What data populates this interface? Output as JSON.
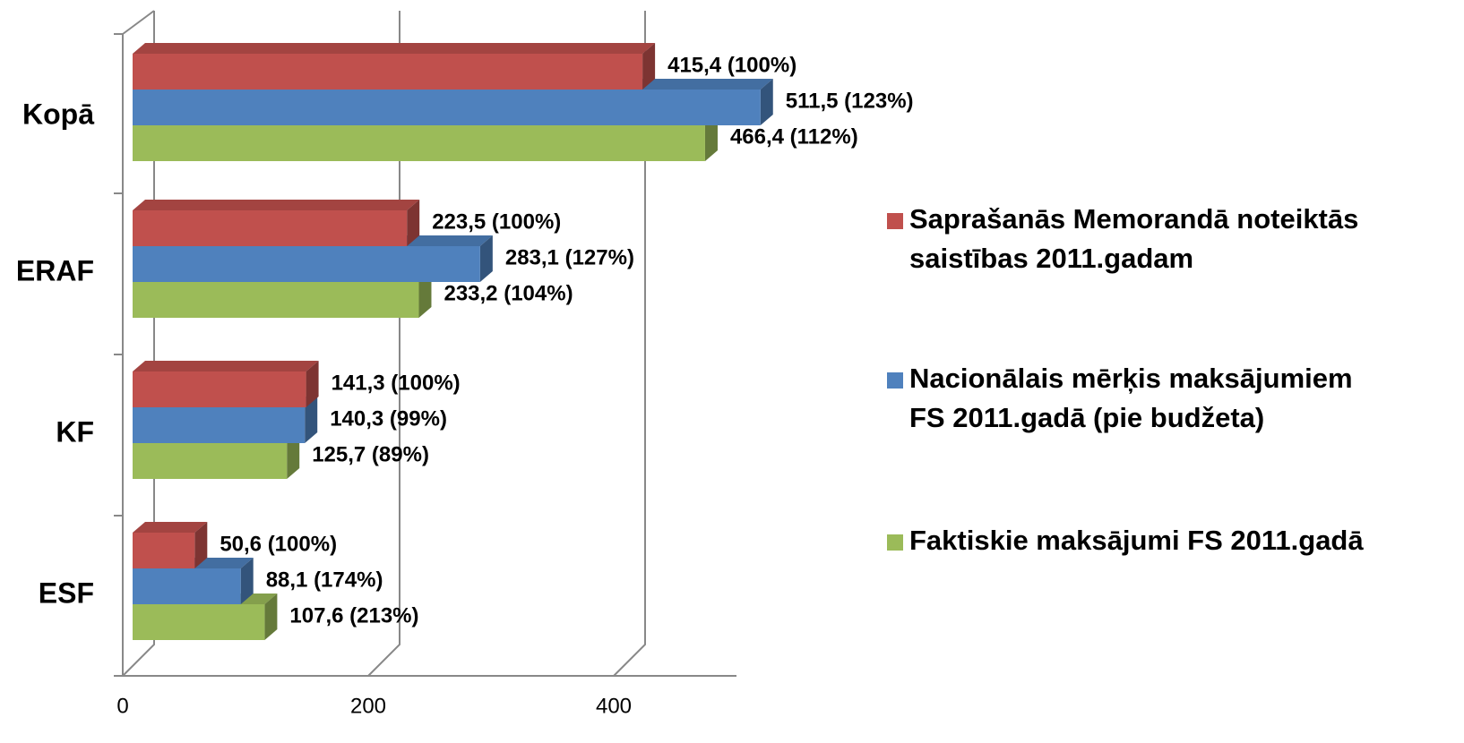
{
  "chart_data": {
    "type": "bar3d_horizontal",
    "categories": [
      "Kopā",
      "ERAF",
      "KF",
      "ESF"
    ],
    "series": [
      {
        "name": "Saprašanās Memorandā noteiktās saistības 2011.gadam",
        "color": "#c0504d",
        "values": [
          415.4,
          223.5,
          141.3,
          50.6
        ],
        "value_labels": [
          "415,4 (100%)",
          "223,5 (100%)",
          "141,3 (100%)",
          "50,6 (100%)"
        ]
      },
      {
        "name": "Nacionālais mērķis maksājumiem FS 2011.gadā (pie budžeta)",
        "color": "#4f81bd",
        "values": [
          511.5,
          283.1,
          140.3,
          88.1
        ],
        "value_labels": [
          "511,5 (123%)",
          "283,1 (127%)",
          "140,3 (99%)",
          "88,1 (174%)"
        ]
      },
      {
        "name": "Faktiskie maksājumi FS 2011.gadā",
        "color": "#9bbb59",
        "values": [
          466.4,
          233.2,
          125.7,
          107.6
        ],
        "value_labels": [
          "466,4 (112%)",
          "233,2 (104%)",
          "125,7 (89%)",
          "107,6 (213%)"
        ]
      }
    ],
    "xlim": [
      0,
      500
    ],
    "xticks": [
      0,
      200,
      400
    ],
    "grid": true,
    "legend": "right"
  }
}
